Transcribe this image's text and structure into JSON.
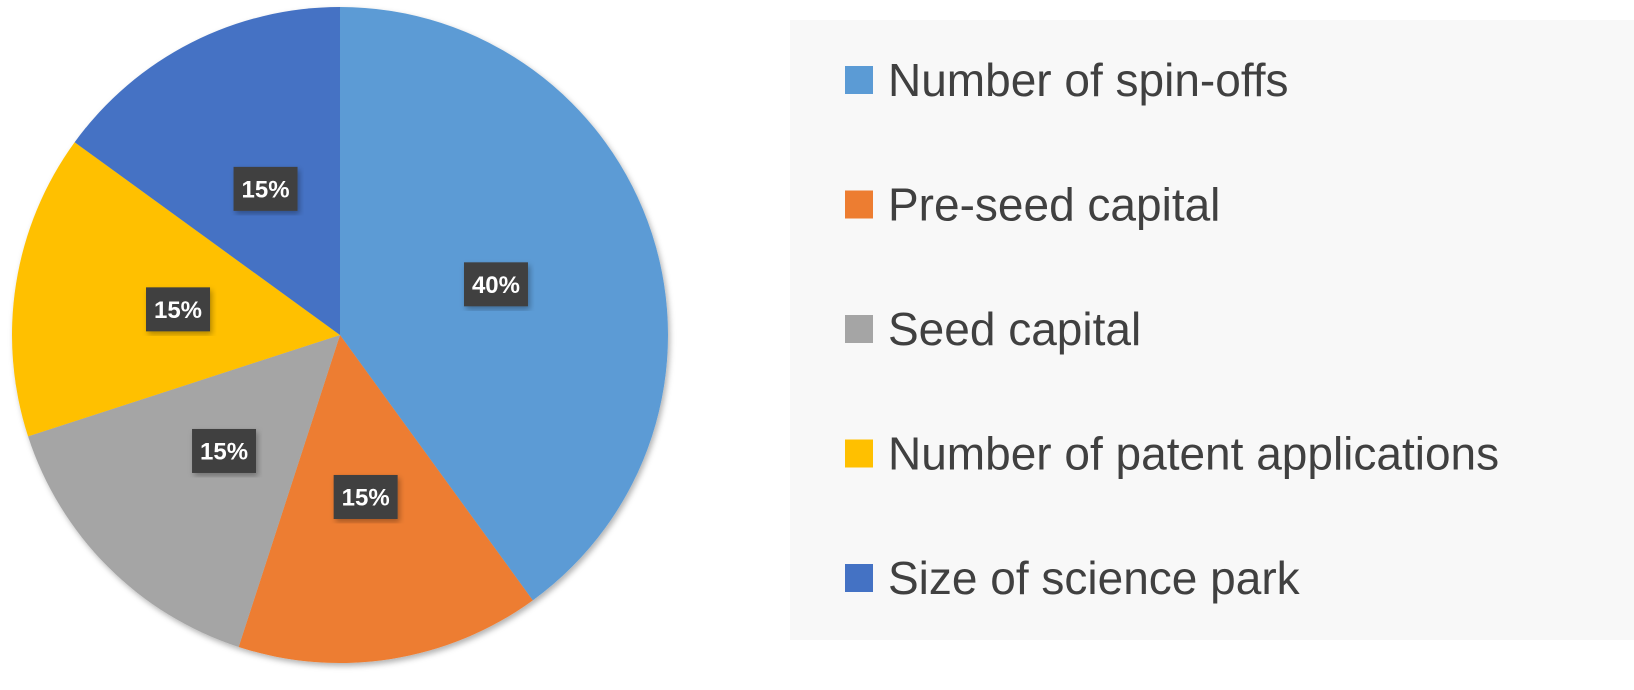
{
  "chart_data": {
    "type": "pie",
    "categories": [
      "Number of spin-offs",
      "Pre-seed capital",
      "Seed capital",
      "Number of patent applications",
      "Size of science park"
    ],
    "values": [
      40,
      15,
      15,
      15,
      15
    ],
    "value_labels": [
      "40%",
      "15%",
      "15%",
      "15%",
      "15%"
    ],
    "colors": [
      "#5b9bd5",
      "#ed7d31",
      "#a5a5a5",
      "#ffc000",
      "#4472c4"
    ],
    "legend": "right"
  }
}
